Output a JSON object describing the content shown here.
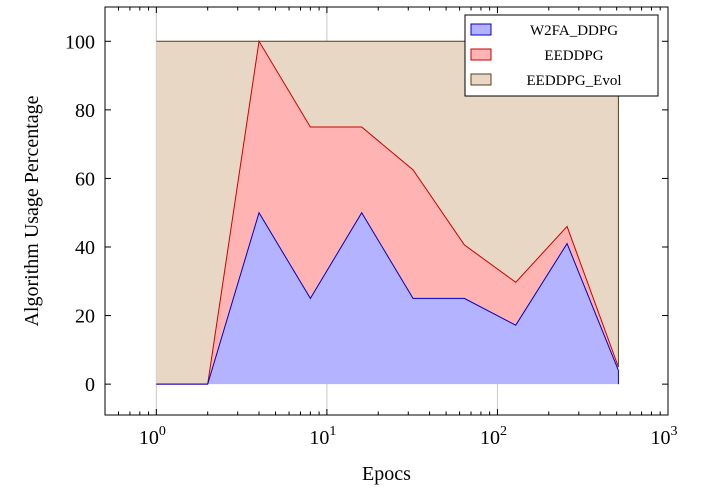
{
  "chart_data": {
    "type": "area",
    "x_scale": "log",
    "x": [
      1,
      2,
      4,
      8,
      16,
      32,
      64,
      128,
      256,
      512
    ],
    "series": [
      {
        "name": "W2FA_DDPG",
        "values": [
          0,
          0,
          50,
          25,
          50,
          25,
          25,
          17.2,
          41,
          4
        ],
        "fill": "#b3b3ff",
        "stroke": "#0000cc"
      },
      {
        "name": "EEDDPG",
        "values": [
          0,
          0,
          50,
          50,
          25,
          37.5,
          15.6,
          12.5,
          5,
          1
        ],
        "fill": "#ffb3b3",
        "stroke": "#cc0000"
      },
      {
        "name": "EEDDPG_Evol",
        "values": [
          100,
          100,
          0,
          25,
          25,
          37.5,
          59.4,
          70.3,
          54,
          95
        ],
        "fill": "#e8d7c4",
        "stroke": "#5a3e1b"
      }
    ],
    "stacked": true,
    "xlabel": "Epocs",
    "ylabel": "Algorithm Usage Percentage",
    "xlim": [
      0.5,
      1000
    ],
    "ylim": [
      -9,
      110
    ],
    "y_ticks": [
      0,
      20,
      40,
      60,
      80,
      100
    ],
    "x_ticks": [
      {
        "value": 1,
        "base": "10",
        "exp": "0"
      },
      {
        "value": 10,
        "base": "10",
        "exp": "1"
      },
      {
        "value": 100,
        "base": "10",
        "exp": "2"
      },
      {
        "value": 1000,
        "base": "10",
        "exp": "3"
      }
    ],
    "grid": "vertical-major",
    "legend_position": "top-right"
  }
}
